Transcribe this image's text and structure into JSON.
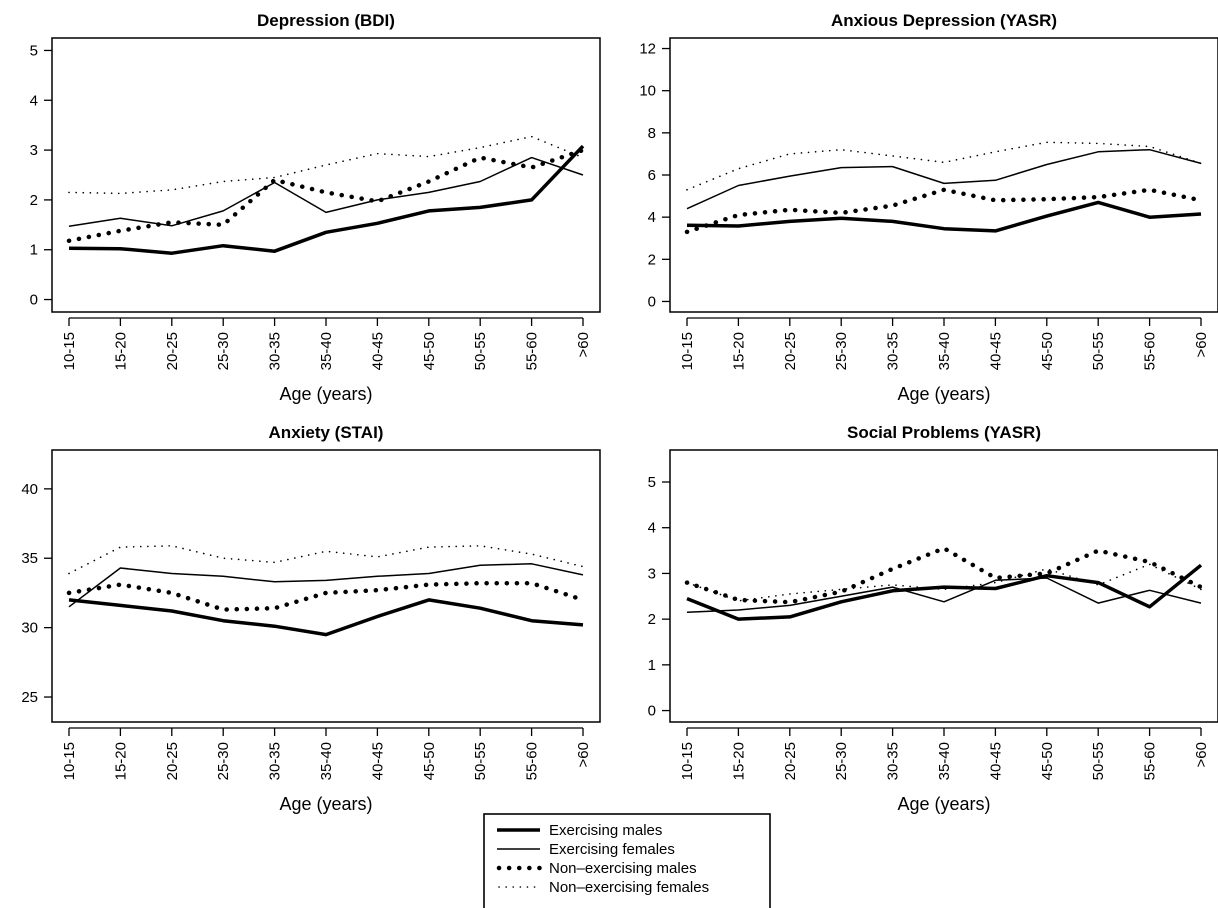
{
  "chart_data": [
    {
      "type": "line",
      "title": "Depression (BDI)",
      "xlabel": "Age (years)",
      "ylabel": "",
      "categories": [
        "10-15",
        "15-20",
        "20-25",
        "25-30",
        "30-35",
        "35-40",
        "40-45",
        "45-50",
        "50-55",
        "55-60",
        ">60"
      ],
      "ylim": [
        -0.25,
        5.25
      ],
      "yticks": [
        0,
        1,
        2,
        3,
        4,
        5
      ],
      "series": [
        {
          "name": "Exercising males",
          "values": [
            1.03,
            1.02,
            0.93,
            1.08,
            0.97,
            1.35,
            1.53,
            1.78,
            1.85,
            2.0,
            3.08
          ]
        },
        {
          "name": "Exercising females",
          "values": [
            1.47,
            1.63,
            1.48,
            1.78,
            2.35,
            1.75,
            2.0,
            2.15,
            2.37,
            2.85,
            2.5
          ]
        },
        {
          "name": "Non–exercising males",
          "values": [
            1.18,
            1.38,
            1.55,
            1.5,
            2.4,
            2.15,
            1.97,
            2.37,
            2.85,
            2.65,
            3.0
          ]
        },
        {
          "name": "Non–exercising females",
          "values": [
            2.15,
            2.13,
            2.2,
            2.37,
            2.45,
            2.7,
            2.93,
            2.87,
            3.05,
            3.27,
            2.85
          ]
        }
      ]
    },
    {
      "type": "line",
      "title": "Anxious Depression (YASR)",
      "xlabel": "Age (years)",
      "ylabel": "",
      "categories": [
        "10-15",
        "15-20",
        "20-25",
        "25-30",
        "30-35",
        "35-40",
        "40-45",
        "45-50",
        "50-55",
        "55-60",
        ">60"
      ],
      "ylim": [
        -0.5,
        12.5
      ],
      "yticks": [
        0,
        2,
        4,
        6,
        8,
        10,
        12
      ],
      "series": [
        {
          "name": "Exercising males",
          "values": [
            3.62,
            3.58,
            3.8,
            3.95,
            3.8,
            3.45,
            3.35,
            4.05,
            4.7,
            4.0,
            4.15
          ]
        },
        {
          "name": "Exercising females",
          "values": [
            4.4,
            5.5,
            5.95,
            6.35,
            6.4,
            5.6,
            5.75,
            6.5,
            7.1,
            7.2,
            6.55
          ]
        },
        {
          "name": "Non–exercising males",
          "values": [
            3.3,
            4.1,
            4.35,
            4.2,
            4.55,
            5.3,
            4.8,
            4.85,
            4.95,
            5.3,
            4.8
          ]
        },
        {
          "name": "Non–exercising females",
          "values": [
            5.3,
            6.3,
            7.0,
            7.2,
            6.9,
            6.6,
            7.1,
            7.55,
            7.5,
            7.35,
            6.55
          ]
        }
      ]
    },
    {
      "type": "line",
      "title": "Anxiety (STAI)",
      "xlabel": "Age (years)",
      "ylabel": "",
      "categories": [
        "10-15",
        "15-20",
        "20-25",
        "25-30",
        "30-35",
        "35-40",
        "40-45",
        "45-50",
        "50-55",
        "55-60",
        ">60"
      ],
      "ylim": [
        23.2,
        42.8
      ],
      "yticks": [
        25,
        30,
        35,
        40
      ],
      "series": [
        {
          "name": "Exercising males",
          "values": [
            32.0,
            31.6,
            31.2,
            30.5,
            30.1,
            29.5,
            30.8,
            32.0,
            31.4,
            30.5,
            30.2
          ]
        },
        {
          "name": "Exercising females",
          "values": [
            31.5,
            34.3,
            33.9,
            33.7,
            33.3,
            33.4,
            33.7,
            33.9,
            34.5,
            34.6,
            33.8
          ]
        },
        {
          "name": "Non–exercising males",
          "values": [
            32.5,
            33.1,
            32.5,
            31.3,
            31.4,
            32.5,
            32.7,
            33.1,
            33.2,
            33.2,
            32.0
          ]
        },
        {
          "name": "Non–exercising females",
          "values": [
            33.9,
            35.8,
            35.9,
            35.0,
            34.7,
            35.5,
            35.1,
            35.8,
            35.9,
            35.3,
            34.4
          ]
        }
      ]
    },
    {
      "type": "line",
      "title": "Social Problems (YASR)",
      "xlabel": "Age (years)",
      "ylabel": "",
      "categories": [
        "10-15",
        "15-20",
        "20-25",
        "25-30",
        "30-35",
        "35-40",
        "40-45",
        "45-50",
        "50-55",
        "55-60",
        ">60"
      ],
      "ylim": [
        -0.25,
        5.7
      ],
      "yticks": [
        0,
        1,
        2,
        3,
        4,
        5
      ],
      "series": [
        {
          "name": "Exercising males",
          "values": [
            2.45,
            2.0,
            2.05,
            2.38,
            2.62,
            2.7,
            2.67,
            2.95,
            2.8,
            2.27,
            3.18
          ]
        },
        {
          "name": "Exercising females",
          "values": [
            2.15,
            2.2,
            2.3,
            2.5,
            2.7,
            2.38,
            2.85,
            2.9,
            2.35,
            2.63,
            2.35
          ]
        },
        {
          "name": "Non–exercising males",
          "values": [
            2.8,
            2.42,
            2.37,
            2.6,
            3.1,
            3.55,
            2.9,
            3.0,
            3.5,
            3.25,
            2.7
          ]
        },
        {
          "name": "Non–exercising females",
          "values": [
            2.8,
            2.4,
            2.55,
            2.65,
            2.75,
            2.65,
            2.8,
            3.1,
            2.75,
            3.2,
            2.65
          ]
        }
      ]
    }
  ],
  "legend": {
    "items": [
      {
        "label": "Exercising males",
        "style": "thick-solid"
      },
      {
        "label": "Exercising females",
        "style": "thin-solid"
      },
      {
        "label": "Non–exercising males",
        "style": "thick-dotted"
      },
      {
        "label": "Non–exercising females",
        "style": "thin-dotted"
      }
    ]
  }
}
